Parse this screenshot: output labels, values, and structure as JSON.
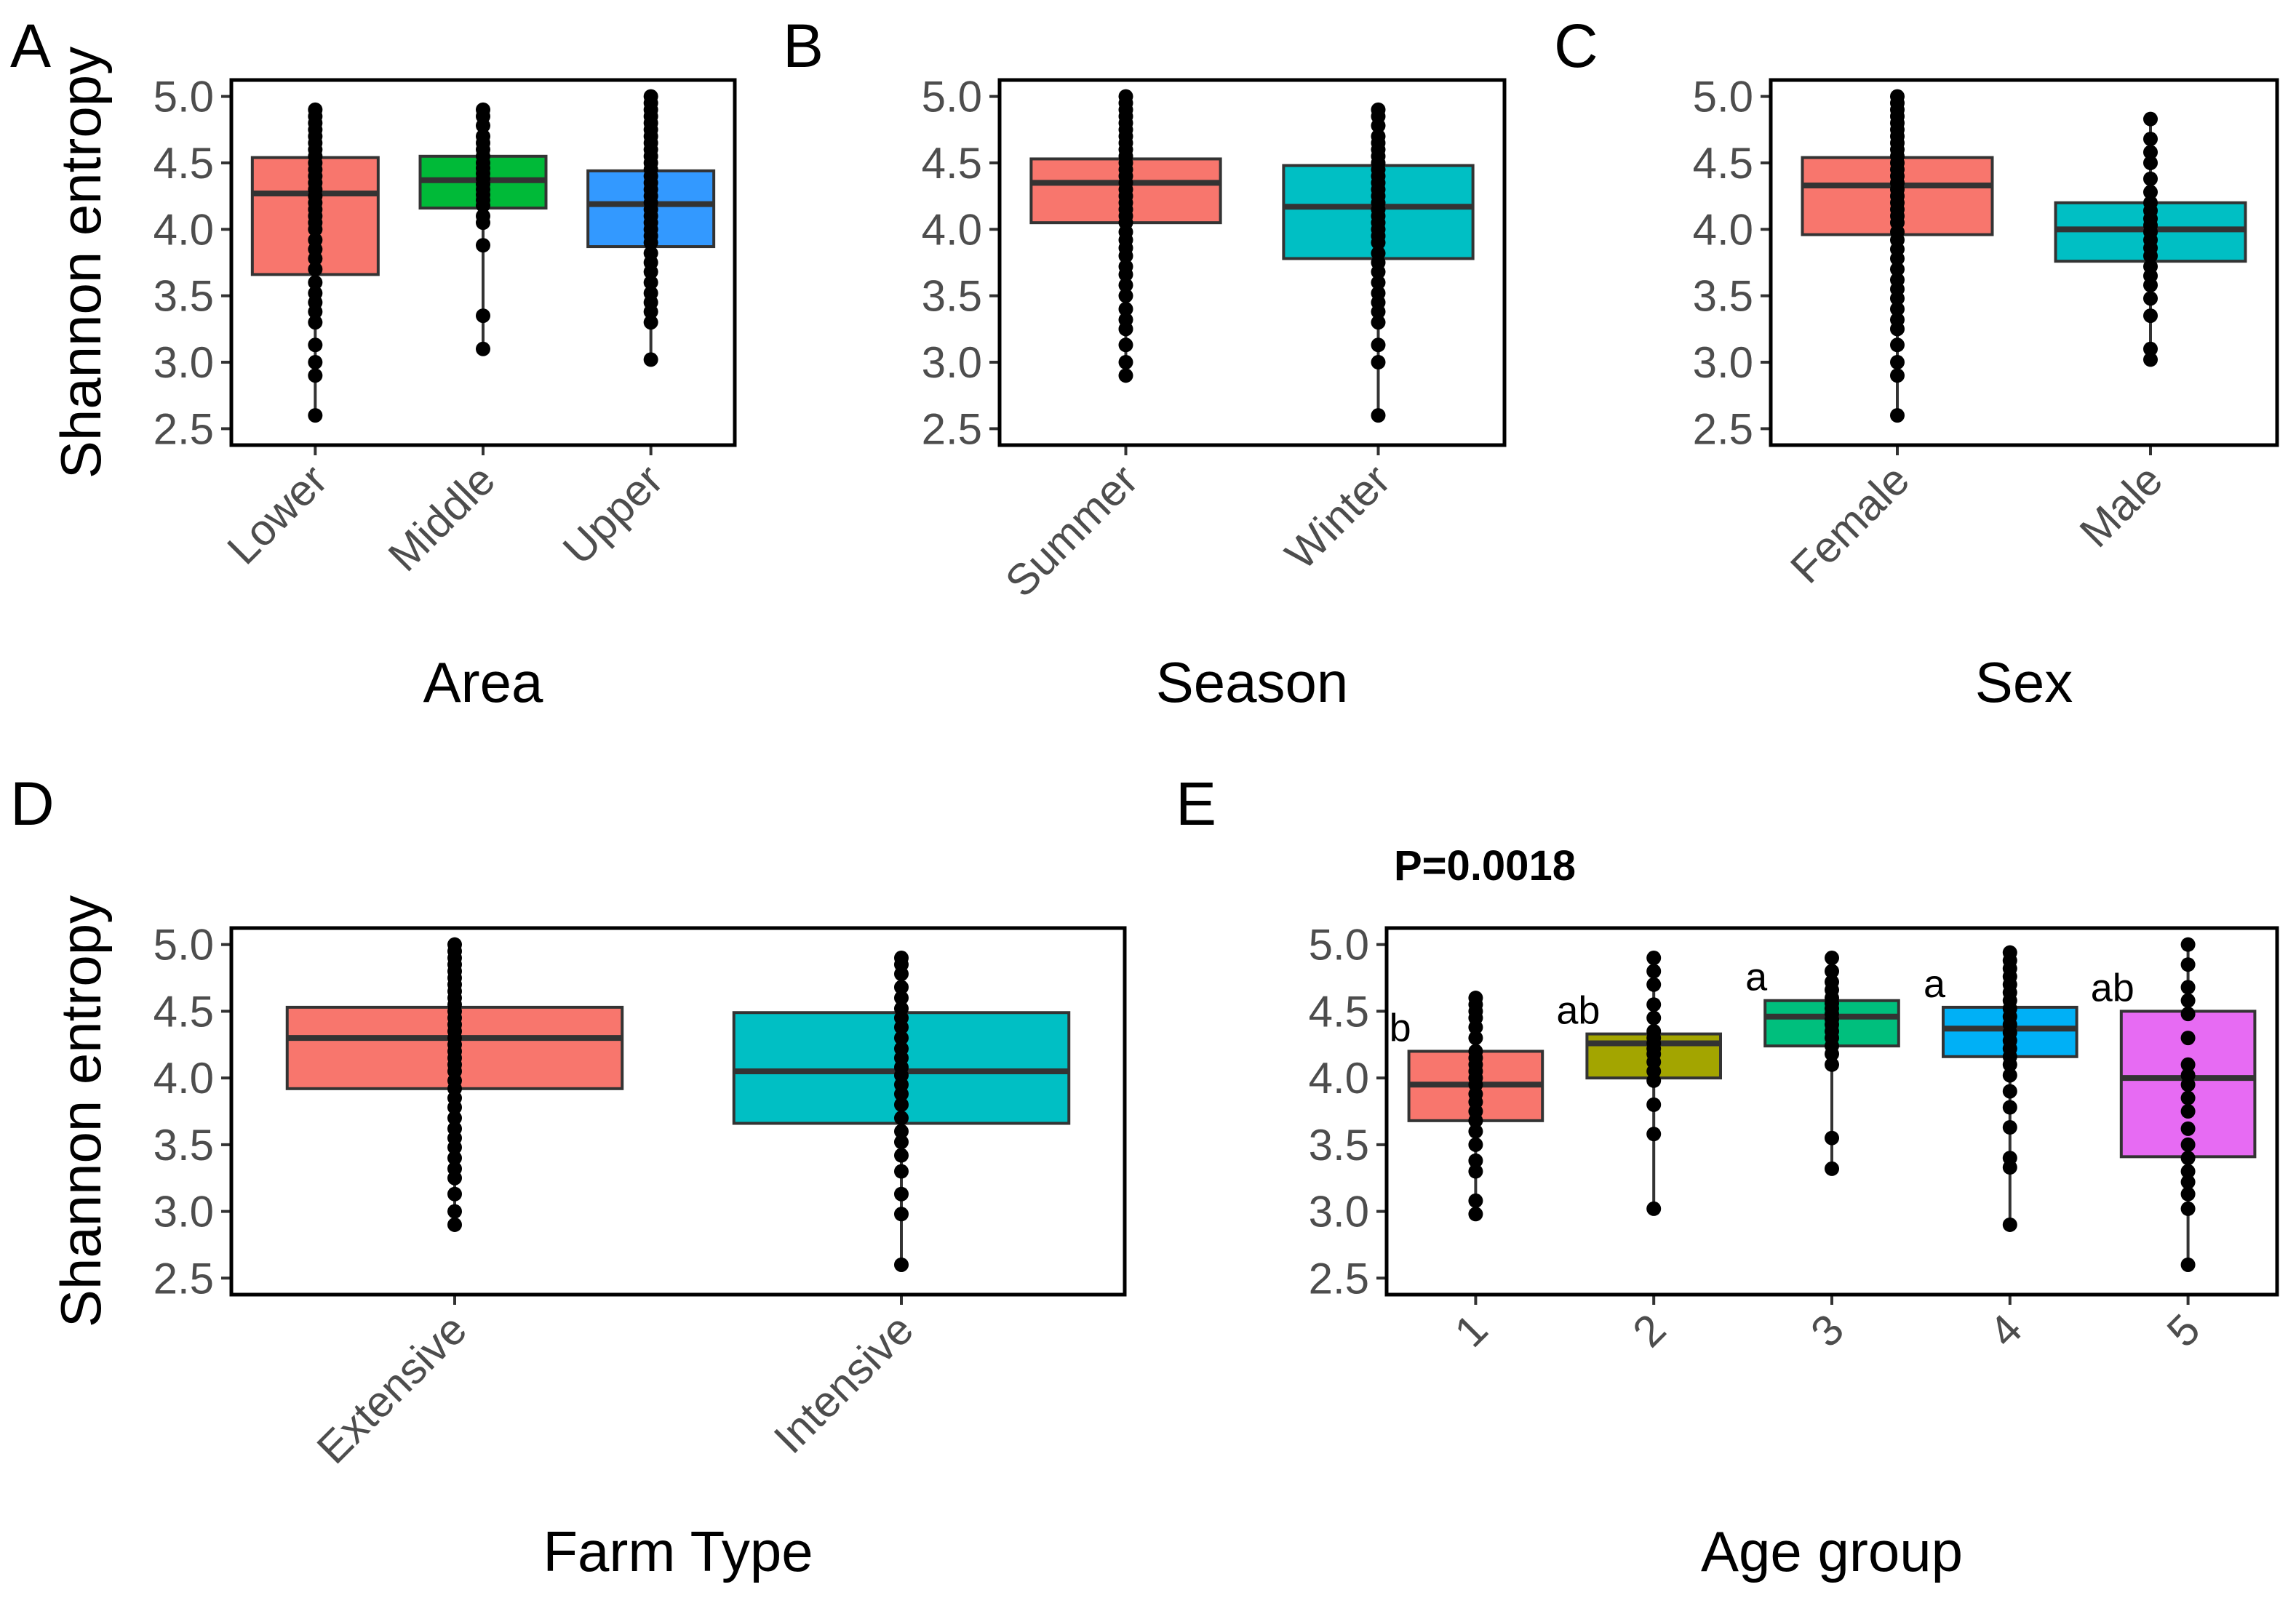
{
  "figure": {
    "ylabel": "Shannon entropy",
    "ylim": [
      2.5,
      5.0
    ],
    "yticks": [
      "2.5",
      "3.0",
      "3.5",
      "4.0",
      "4.5",
      "5.0"
    ],
    "point_color": "#000000",
    "box_edge_color": "#333333"
  },
  "chart_data": [
    {
      "panel": "A",
      "type": "box",
      "xlabel": "Area",
      "show_ylabel": true,
      "categories": [
        "Lower",
        "Middle",
        "Upper"
      ],
      "colors": [
        "#F8766D",
        "#00BA38",
        "#3399FF"
      ],
      "boxes": [
        {
          "q1": 3.66,
          "median": 4.27,
          "q3": 4.54,
          "whisker_low": 2.6,
          "whisker_high": 4.9,
          "points": [
            2.6,
            2.9,
            3.0,
            3.13,
            3.3,
            3.38,
            3.45,
            3.52,
            3.6,
            3.7,
            3.78,
            3.85,
            3.92,
            4.0,
            4.05,
            4.1,
            4.15,
            4.2,
            4.25,
            4.3,
            4.35,
            4.4,
            4.45,
            4.5,
            4.55,
            4.6,
            4.65,
            4.7,
            4.75,
            4.8,
            4.85,
            4.9
          ]
        },
        {
          "q1": 4.16,
          "median": 4.37,
          "q3": 4.55,
          "whisker_low": 3.1,
          "whisker_high": 4.9,
          "points": [
            3.1,
            3.35,
            3.88,
            4.05,
            4.1,
            4.18,
            4.22,
            4.26,
            4.3,
            4.34,
            4.38,
            4.42,
            4.46,
            4.5,
            4.55,
            4.6,
            4.65,
            4.7,
            4.78,
            4.85,
            4.9
          ]
        },
        {
          "q1": 3.87,
          "median": 4.19,
          "q3": 4.44,
          "whisker_low": 3.02,
          "whisker_high": 5.0,
          "points": [
            3.02,
            3.3,
            3.38,
            3.45,
            3.52,
            3.6,
            3.68,
            3.75,
            3.82,
            3.9,
            3.95,
            4.0,
            4.05,
            4.1,
            4.15,
            4.2,
            4.25,
            4.3,
            4.35,
            4.4,
            4.45,
            4.5,
            4.55,
            4.6,
            4.65,
            4.7,
            4.75,
            4.8,
            4.85,
            4.9,
            4.95,
            5.0
          ]
        }
      ]
    },
    {
      "panel": "B",
      "type": "box",
      "xlabel": "Season",
      "show_ylabel": false,
      "categories": [
        "Summer",
        "Winter"
      ],
      "colors": [
        "#F8766D",
        "#00BFC4"
      ],
      "boxes": [
        {
          "q1": 4.05,
          "median": 4.35,
          "q3": 4.53,
          "whisker_low": 2.9,
          "whisker_high": 5.0,
          "points": [
            2.9,
            3.0,
            3.13,
            3.25,
            3.32,
            3.4,
            3.5,
            3.58,
            3.66,
            3.72,
            3.8,
            3.86,
            3.92,
            3.98,
            4.05,
            4.1,
            4.15,
            4.2,
            4.25,
            4.3,
            4.35,
            4.4,
            4.45,
            4.5,
            4.55,
            4.6,
            4.65,
            4.7,
            4.75,
            4.8,
            4.85,
            4.9,
            4.95,
            5.0
          ]
        },
        {
          "q1": 3.78,
          "median": 4.17,
          "q3": 4.48,
          "whisker_low": 2.6,
          "whisker_high": 4.9,
          "points": [
            2.6,
            3.0,
            3.13,
            3.3,
            3.38,
            3.45,
            3.52,
            3.6,
            3.68,
            3.75,
            3.82,
            3.9,
            3.95,
            4.0,
            4.05,
            4.1,
            4.15,
            4.2,
            4.25,
            4.3,
            4.35,
            4.4,
            4.45,
            4.5,
            4.55,
            4.6,
            4.65,
            4.7,
            4.78,
            4.85,
            4.9
          ]
        }
      ]
    },
    {
      "panel": "C",
      "type": "box",
      "xlabel": "Sex",
      "show_ylabel": false,
      "categories": [
        "Female",
        "Male"
      ],
      "colors": [
        "#F8766D",
        "#00BFC4"
      ],
      "boxes": [
        {
          "q1": 3.96,
          "median": 4.33,
          "q3": 4.54,
          "whisker_low": 2.6,
          "whisker_high": 5.0,
          "points": [
            2.6,
            2.9,
            3.0,
            3.13,
            3.25,
            3.32,
            3.4,
            3.48,
            3.55,
            3.62,
            3.7,
            3.78,
            3.85,
            3.92,
            3.98,
            4.05,
            4.1,
            4.15,
            4.2,
            4.25,
            4.3,
            4.35,
            4.4,
            4.45,
            4.5,
            4.55,
            4.6,
            4.65,
            4.7,
            4.75,
            4.8,
            4.85,
            4.9,
            4.95,
            5.0
          ]
        },
        {
          "q1": 3.76,
          "median": 4.0,
          "q3": 4.2,
          "whisker_low": 3.02,
          "whisker_high": 4.83,
          "points": [
            3.02,
            3.1,
            3.35,
            3.48,
            3.58,
            3.65,
            3.72,
            3.8,
            3.86,
            3.92,
            3.98,
            4.03,
            4.08,
            4.14,
            4.2,
            4.28,
            4.38,
            4.5,
            4.58,
            4.68,
            4.83
          ]
        }
      ]
    },
    {
      "panel": "D",
      "type": "box",
      "xlabel": "Farm Type",
      "show_ylabel": true,
      "categories": [
        "Extensive",
        "Intensive"
      ],
      "colors": [
        "#F8766D",
        "#00BFC4"
      ],
      "boxes": [
        {
          "q1": 3.92,
          "median": 4.3,
          "q3": 4.53,
          "whisker_low": 2.9,
          "whisker_high": 5.0,
          "points": [
            2.9,
            3.0,
            3.13,
            3.25,
            3.32,
            3.4,
            3.48,
            3.55,
            3.62,
            3.7,
            3.78,
            3.85,
            3.92,
            3.98,
            4.05,
            4.1,
            4.15,
            4.2,
            4.25,
            4.3,
            4.35,
            4.4,
            4.45,
            4.5,
            4.55,
            4.6,
            4.65,
            4.7,
            4.75,
            4.8,
            4.85,
            4.9,
            4.95,
            5.0
          ]
        },
        {
          "q1": 3.66,
          "median": 4.05,
          "q3": 4.49,
          "whisker_low": 2.6,
          "whisker_high": 4.9,
          "points": [
            2.6,
            2.98,
            3.13,
            3.3,
            3.42,
            3.52,
            3.6,
            3.7,
            3.8,
            3.88,
            3.95,
            4.02,
            4.08,
            4.15,
            4.22,
            4.3,
            4.38,
            4.45,
            4.52,
            4.6,
            4.68,
            4.78,
            4.85,
            4.9
          ]
        }
      ]
    },
    {
      "panel": "E",
      "type": "box",
      "xlabel": "Age group",
      "show_ylabel": false,
      "pvalue": "P=0.0018",
      "categories": [
        "1",
        "2",
        "3",
        "4",
        "5"
      ],
      "colors": [
        "#F8766D",
        "#A3A500",
        "#00BF7D",
        "#00B0F6",
        "#E76BF3"
      ],
      "significance_letters": [
        "b",
        "ab",
        "a",
        "a",
        "ab"
      ],
      "boxes": [
        {
          "q1": 3.68,
          "median": 3.95,
          "q3": 4.2,
          "whisker_low": 2.98,
          "whisker_high": 4.6,
          "points": [
            2.98,
            3.08,
            3.3,
            3.38,
            3.5,
            3.6,
            3.68,
            3.75,
            3.82,
            3.88,
            3.95,
            4.0,
            4.05,
            4.1,
            4.15,
            4.2,
            4.3,
            4.38,
            4.45,
            4.5,
            4.55,
            4.6
          ]
        },
        {
          "q1": 4.0,
          "median": 4.26,
          "q3": 4.33,
          "whisker_low": 3.02,
          "whisker_high": 4.9,
          "points": [
            3.02,
            3.58,
            3.8,
            3.98,
            4.05,
            4.12,
            4.18,
            4.22,
            4.26,
            4.3,
            4.35,
            4.45,
            4.55,
            4.7,
            4.8,
            4.9
          ]
        },
        {
          "q1": 4.24,
          "median": 4.46,
          "q3": 4.58,
          "whisker_low": 3.32,
          "whisker_high": 4.9,
          "points": [
            3.32,
            3.55,
            4.1,
            4.18,
            4.24,
            4.3,
            4.35,
            4.4,
            4.44,
            4.48,
            4.52,
            4.56,
            4.6,
            4.66,
            4.72,
            4.8,
            4.9
          ]
        },
        {
          "q1": 4.16,
          "median": 4.37,
          "q3": 4.53,
          "whisker_low": 2.9,
          "whisker_high": 4.94,
          "points": [
            2.9,
            3.33,
            3.4,
            3.63,
            3.78,
            3.9,
            4.02,
            4.1,
            4.16,
            4.22,
            4.28,
            4.34,
            4.4,
            4.46,
            4.52,
            4.58,
            4.64,
            4.7,
            4.76,
            4.82,
            4.88,
            4.94
          ]
        },
        {
          "q1": 3.41,
          "median": 4.0,
          "q3": 4.5,
          "whisker_low": 2.6,
          "whisker_high": 5.0,
          "points": [
            2.6,
            3.02,
            3.13,
            3.22,
            3.3,
            3.4,
            3.5,
            3.62,
            3.75,
            3.85,
            3.95,
            4.02,
            4.1,
            4.3,
            4.48,
            4.58,
            4.68,
            4.85,
            5.0
          ]
        }
      ]
    }
  ]
}
